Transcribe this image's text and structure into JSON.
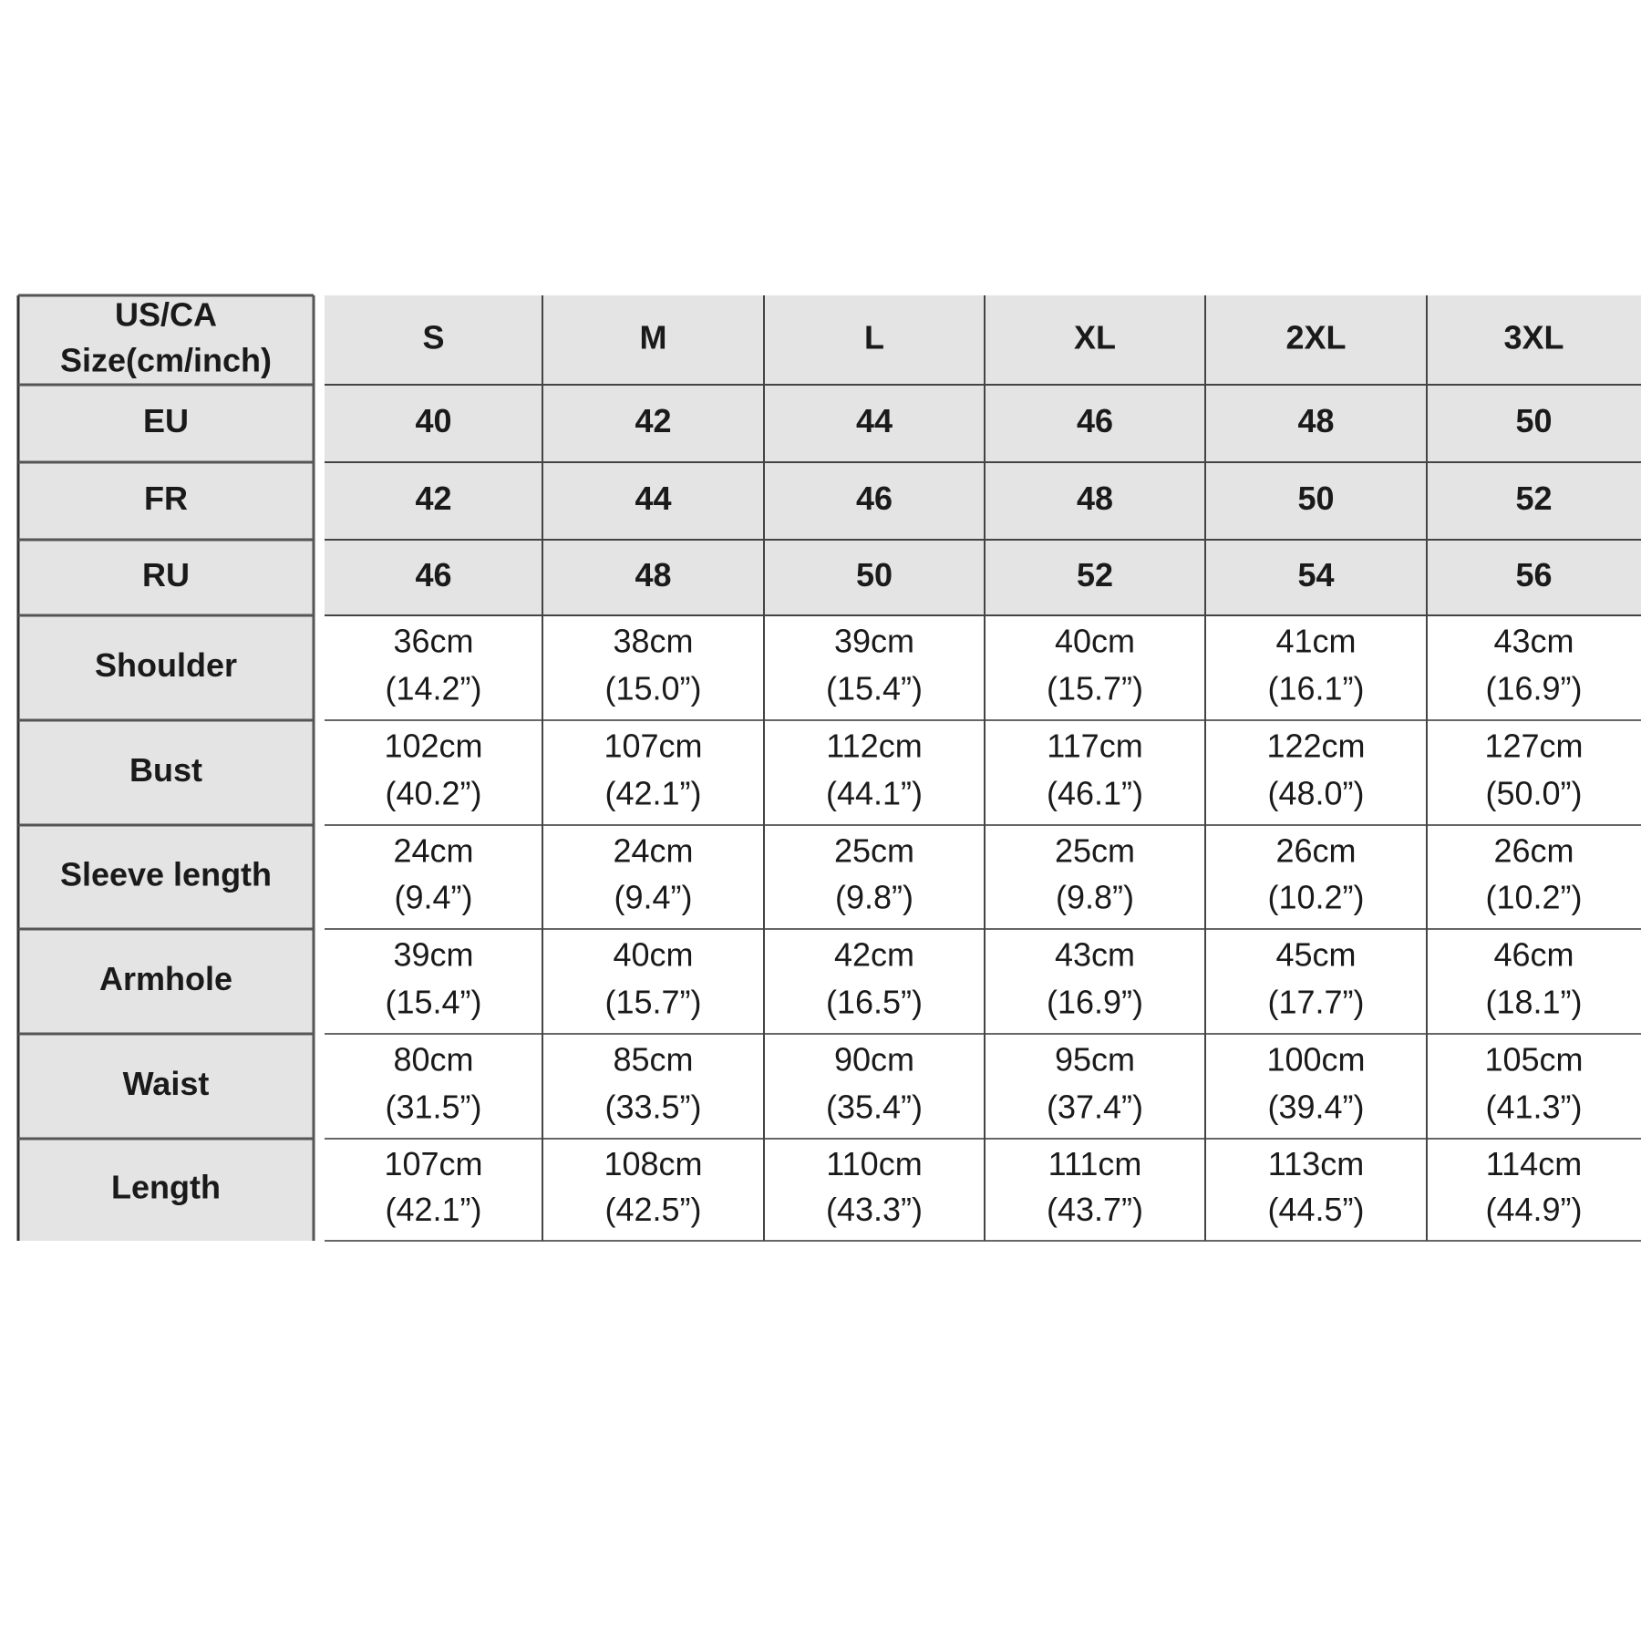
{
  "table": {
    "corner": [
      "US/CA",
      "Size(cm/inch)"
    ],
    "columns": [
      "S",
      "M",
      "L",
      "XL",
      "2XL",
      "3XL"
    ],
    "size_rows": [
      {
        "label": "EU",
        "values": [
          "40",
          "42",
          "44",
          "46",
          "48",
          "50"
        ]
      },
      {
        "label": "FR",
        "values": [
          "42",
          "44",
          "46",
          "48",
          "50",
          "52"
        ]
      },
      {
        "label": "RU",
        "values": [
          "46",
          "48",
          "50",
          "52",
          "54",
          "56"
        ]
      }
    ],
    "measure_rows": [
      {
        "label": "Shoulder",
        "values": [
          [
            "36cm",
            "(14.2”)"
          ],
          [
            "38cm",
            "(15.0”)"
          ],
          [
            "39cm",
            "(15.4”)"
          ],
          [
            "40cm",
            "(15.7”)"
          ],
          [
            "41cm",
            "(16.1”)"
          ],
          [
            "43cm",
            "(16.9”)"
          ]
        ]
      },
      {
        "label": "Bust",
        "values": [
          [
            "102cm",
            "(40.2”)"
          ],
          [
            "107cm",
            "(42.1”)"
          ],
          [
            "112cm",
            "(44.1”)"
          ],
          [
            "117cm",
            "(46.1”)"
          ],
          [
            "122cm",
            "(48.0”)"
          ],
          [
            "127cm",
            "(50.0”)"
          ]
        ]
      },
      {
        "label": "Sleeve length",
        "values": [
          [
            "24cm",
            "(9.4”)"
          ],
          [
            "24cm",
            "(9.4”)"
          ],
          [
            "25cm",
            "(9.8”)"
          ],
          [
            "25cm",
            "(9.8”)"
          ],
          [
            "26cm",
            "(10.2”)"
          ],
          [
            "26cm",
            "(10.2”)"
          ]
        ]
      },
      {
        "label": "Armhole",
        "values": [
          [
            "39cm",
            "(15.4”)"
          ],
          [
            "40cm",
            "(15.7”)"
          ],
          [
            "42cm",
            "(16.5”)"
          ],
          [
            "43cm",
            "(16.9”)"
          ],
          [
            "45cm",
            "(17.7”)"
          ],
          [
            "46cm",
            "(18.1”)"
          ]
        ]
      },
      {
        "label": "Waist",
        "values": [
          [
            "80cm",
            "(31.5”)"
          ],
          [
            "85cm",
            "(33.5”)"
          ],
          [
            "90cm",
            "(35.4”)"
          ],
          [
            "95cm",
            "(37.4”)"
          ],
          [
            "100cm",
            "(39.4”)"
          ],
          [
            "105cm",
            "(41.3”)"
          ]
        ]
      },
      {
        "label": "Length",
        "values": [
          [
            "107cm",
            "(42.1”)"
          ],
          [
            "108cm",
            "(42.5”)"
          ],
          [
            "110cm",
            "(43.3”)"
          ],
          [
            "111cm",
            "(43.7”)"
          ],
          [
            "113cm",
            "(44.5”)"
          ],
          [
            "114cm",
            "(44.9”)"
          ]
        ]
      }
    ]
  }
}
